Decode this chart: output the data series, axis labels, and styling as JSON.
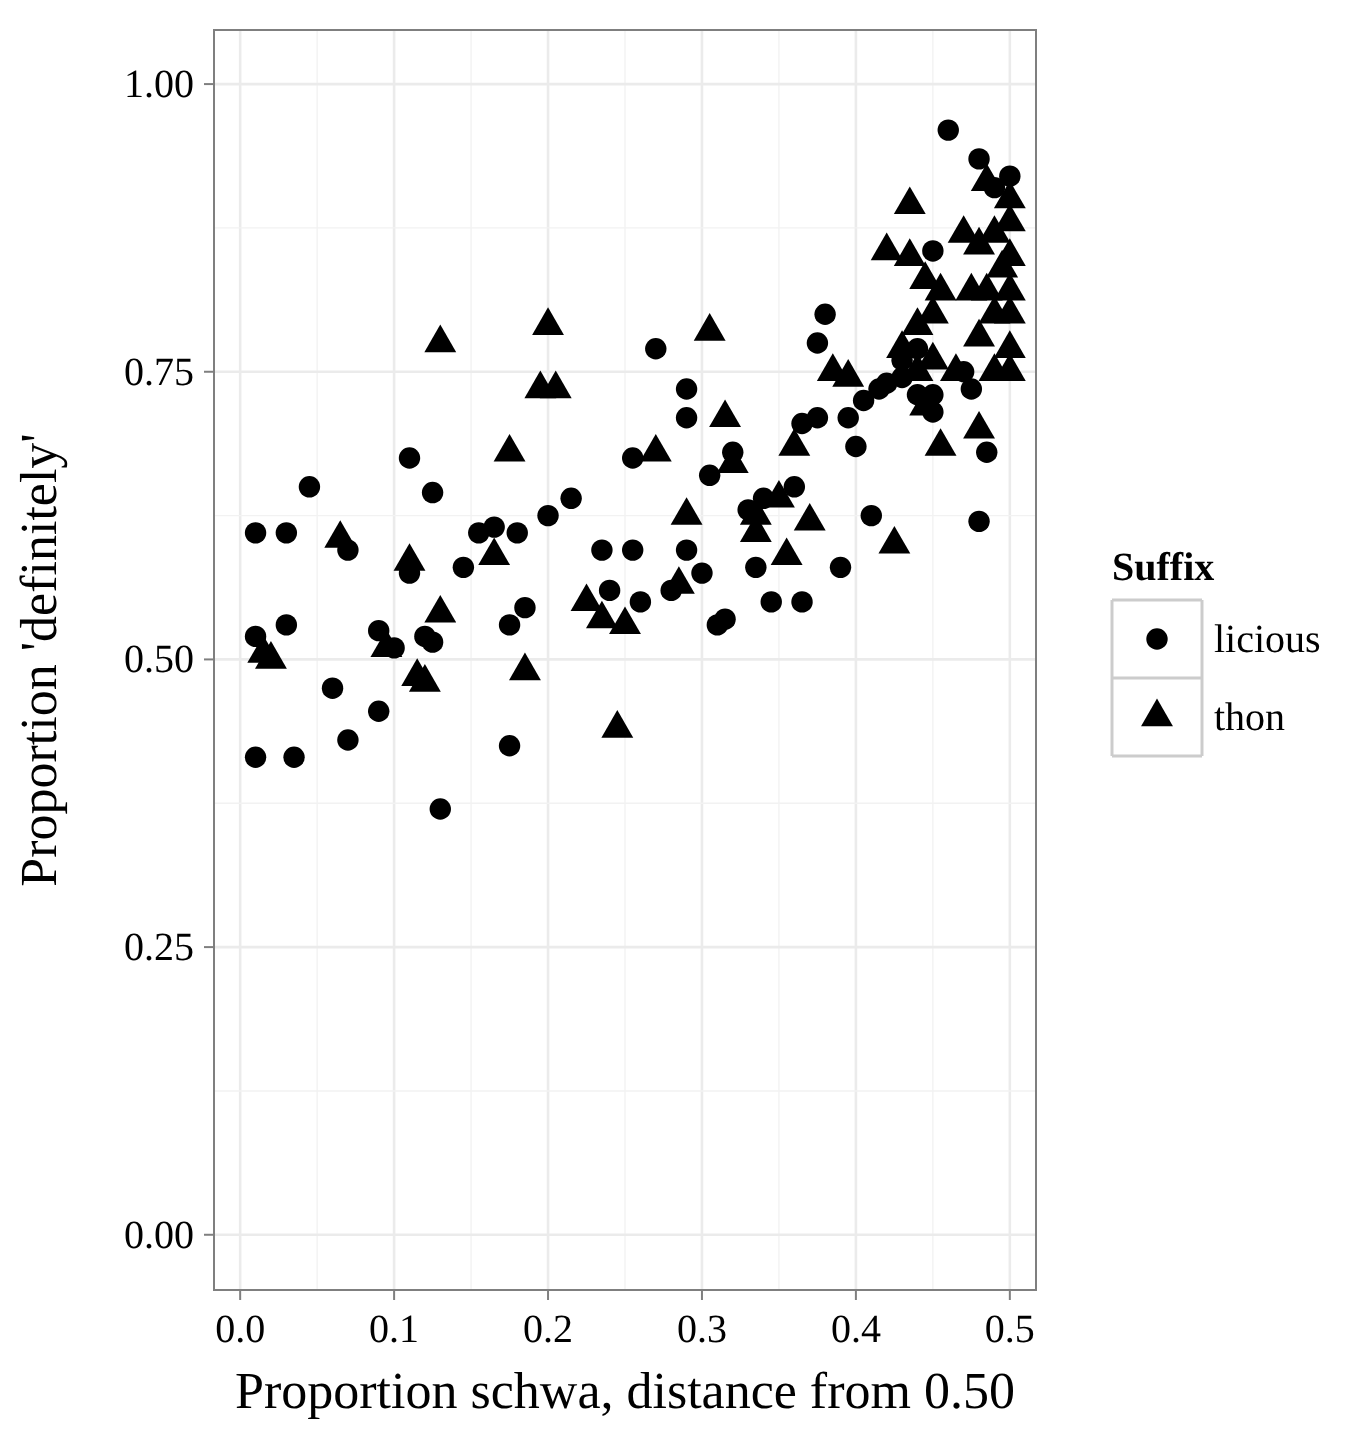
{
  "chart_data": {
    "type": "scatter",
    "xlabel": "Proportion schwa, distance from 0.50",
    "ylabel": "Proportion 'definitely'",
    "legend_title": "Suffix",
    "legend": "right",
    "grid": true,
    "xlim": [
      -0.017,
      0.517
    ],
    "ylim": [
      -0.048,
      1.047
    ],
    "xticks": [
      {
        "value": 0,
        "label": "0.0"
      },
      {
        "value": 0.1,
        "label": "0.1"
      },
      {
        "value": 0.2,
        "label": "0.2"
      },
      {
        "value": 0.3,
        "label": "0.3"
      },
      {
        "value": 0.4,
        "label": "0.4"
      },
      {
        "value": 0.5,
        "label": "0.5"
      }
    ],
    "yticks": [
      {
        "value": 0,
        "label": "0.00"
      },
      {
        "value": 0.25,
        "label": "0.25"
      },
      {
        "value": 0.5,
        "label": "0.50"
      },
      {
        "value": 0.75,
        "label": "0.75"
      },
      {
        "value": 1,
        "label": "1.00"
      }
    ],
    "series": [
      {
        "name": "licious",
        "color": "#000000",
        "marker": "circle",
        "x": [
          0.01,
          0.01,
          0.01,
          0.03,
          0.03,
          0.035,
          0.045,
          0.06,
          0.07,
          0.07,
          0.09,
          0.09,
          0.1,
          0.11,
          0.11,
          0.12,
          0.125,
          0.125,
          0.13,
          0.145,
          0.155,
          0.165,
          0.175,
          0.175,
          0.18,
          0.185,
          0.2,
          0.215,
          0.235,
          0.24,
          0.255,
          0.255,
          0.26,
          0.27,
          0.28,
          0.29,
          0.29,
          0.29,
          0.3,
          0.305,
          0.31,
          0.315,
          0.32,
          0.33,
          0.335,
          0.34,
          0.345,
          0.36,
          0.365,
          0.365,
          0.375,
          0.375,
          0.38,
          0.39,
          0.395,
          0.4,
          0.405,
          0.41,
          0.415,
          0.42,
          0.43,
          0.43,
          0.44,
          0.44,
          0.45,
          0.45,
          0.45,
          0.46,
          0.47,
          0.475,
          0.48,
          0.48,
          0.485,
          0.49,
          0.5
        ],
        "values": [
          0.61,
          0.52,
          0.415,
          0.61,
          0.53,
          0.415,
          0.65,
          0.475,
          0.43,
          0.595,
          0.525,
          0.455,
          0.51,
          0.675,
          0.575,
          0.52,
          0.645,
          0.515,
          0.37,
          0.58,
          0.61,
          0.615,
          0.53,
          0.425,
          0.61,
          0.545,
          0.625,
          0.64,
          0.595,
          0.56,
          0.675,
          0.595,
          0.55,
          0.77,
          0.56,
          0.71,
          0.735,
          0.595,
          0.575,
          0.66,
          0.53,
          0.535,
          0.68,
          0.63,
          0.58,
          0.64,
          0.55,
          0.65,
          0.55,
          0.705,
          0.71,
          0.775,
          0.8,
          0.58,
          0.71,
          0.685,
          0.725,
          0.625,
          0.735,
          0.74,
          0.76,
          0.745,
          0.73,
          0.77,
          0.855,
          0.73,
          0.715,
          0.96,
          0.75,
          0.735,
          0.62,
          0.935,
          0.68,
          0.91,
          0.92
        ]
      },
      {
        "name": "thon",
        "color": "#000000",
        "marker": "triangle",
        "x": [
          0.015,
          0.02,
          0.065,
          0.095,
          0.11,
          0.115,
          0.12,
          0.13,
          0.13,
          0.165,
          0.175,
          0.185,
          0.195,
          0.2,
          0.205,
          0.225,
          0.235,
          0.245,
          0.25,
          0.27,
          0.285,
          0.29,
          0.305,
          0.315,
          0.32,
          0.335,
          0.335,
          0.35,
          0.355,
          0.36,
          0.37,
          0.385,
          0.395,
          0.42,
          0.425,
          0.43,
          0.435,
          0.435,
          0.44,
          0.44,
          0.445,
          0.445,
          0.45,
          0.45,
          0.455,
          0.455,
          0.465,
          0.47,
          0.475,
          0.48,
          0.48,
          0.48,
          0.485,
          0.49,
          0.49,
          0.495,
          0.5,
          0.5,
          0.5,
          0.5,
          0.5,
          0.5,
          0.5,
          0.485,
          0.49
        ],
        "values": [
          0.505,
          0.5,
          0.605,
          0.51,
          0.585,
          0.485,
          0.48,
          0.54,
          0.775,
          0.59,
          0.68,
          0.49,
          0.735,
          0.79,
          0.735,
          0.55,
          0.535,
          0.44,
          0.53,
          0.68,
          0.565,
          0.625,
          0.785,
          0.71,
          0.67,
          0.625,
          0.61,
          0.64,
          0.59,
          0.685,
          0.62,
          0.75,
          0.745,
          0.855,
          0.6,
          0.77,
          0.85,
          0.895,
          0.75,
          0.79,
          0.83,
          0.72,
          0.76,
          0.8,
          0.82,
          0.685,
          0.75,
          0.87,
          0.82,
          0.7,
          0.86,
          0.78,
          0.82,
          0.87,
          0.8,
          0.84,
          0.9,
          0.88,
          0.85,
          0.82,
          0.8,
          0.77,
          0.75,
          0.915,
          0.75
        ]
      }
    ]
  }
}
